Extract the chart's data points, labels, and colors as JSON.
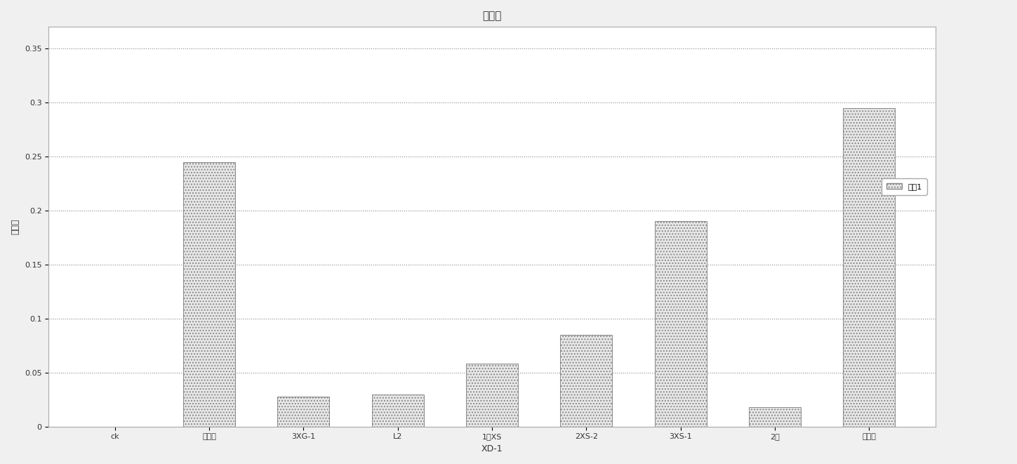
{
  "title": "降解率",
  "categories": [
    "ck",
    "菌群一",
    "3XG-1",
    "L2",
    "1中XS",
    "2XS-2",
    "3XS-1",
    "2中",
    "菌群二"
  ],
  "values": [
    0.0,
    0.245,
    0.028,
    0.03,
    0.058,
    0.085,
    0.19,
    0.018,
    0.295
  ],
  "bar_color": "#e8e8e8",
  "bar_edge_color": "#888888",
  "ylabel": "降解率",
  "xlabel": "XD-1",
  "ylim": [
    0,
    0.37
  ],
  "yticks": [
    0,
    0.05,
    0.1,
    0.15,
    0.2,
    0.25,
    0.3,
    0.35
  ],
  "legend_label": "系列1",
  "title_fontsize": 11,
  "axis_fontsize": 9,
  "tick_fontsize": 8,
  "background_color": "#f0f0f0",
  "plot_bg_color": "#ffffff",
  "grid_color": "#888888",
  "fig_width": 14.49,
  "fig_height": 6.61,
  "dpi": 100
}
